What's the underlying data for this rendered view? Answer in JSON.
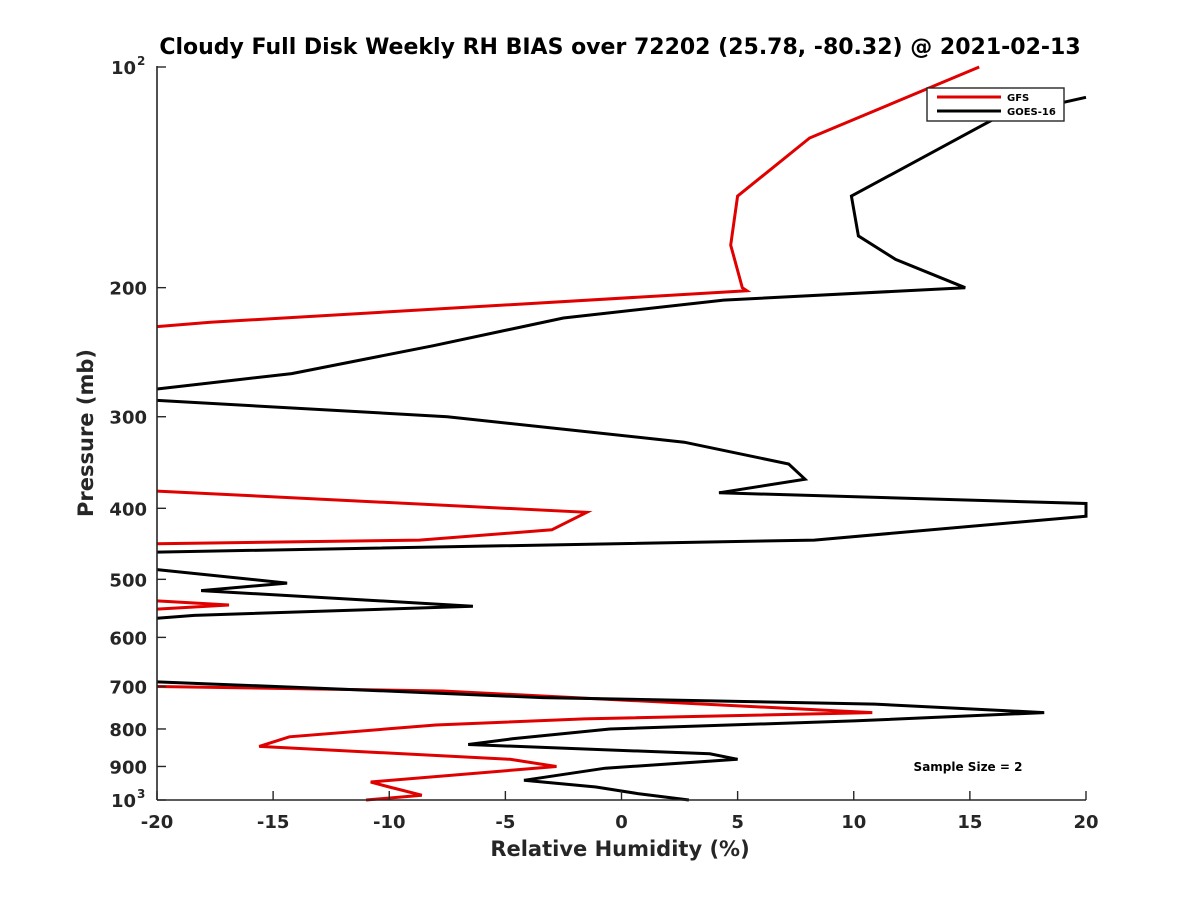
{
  "chart_data": {
    "type": "line",
    "title": "Cloudy Full Disk Weekly RH BIAS over 72202 (25.78, -80.32) @ 2021-02-13",
    "xlabel": "Relative Humidity (%)",
    "ylabel": "Pressure (mb)",
    "xlim": [
      -20,
      20
    ],
    "ylim": [
      100,
      1000
    ],
    "yscale": "log",
    "yreversed": true,
    "grid": false,
    "legend_position": "top-right",
    "x_ticks": [
      {
        "value": -20,
        "label": "-20"
      },
      {
        "value": -15,
        "label": "-15"
      },
      {
        "value": -10,
        "label": "-10"
      },
      {
        "value": -5,
        "label": "-5"
      },
      {
        "value": 0,
        "label": "0"
      },
      {
        "value": 5,
        "label": "5"
      },
      {
        "value": 10,
        "label": "10"
      },
      {
        "value": 15,
        "label": "15"
      },
      {
        "value": 20,
        "label": "20"
      }
    ],
    "y_ticks": [
      {
        "value": 100,
        "label": "10",
        "exponent": "2"
      },
      {
        "value": 200,
        "label": "200"
      },
      {
        "value": 300,
        "label": "300"
      },
      {
        "value": 400,
        "label": "400"
      },
      {
        "value": 500,
        "label": "500"
      },
      {
        "value": 600,
        "label": "600"
      },
      {
        "value": 700,
        "label": "700"
      },
      {
        "value": 800,
        "label": "800"
      },
      {
        "value": 900,
        "label": "900"
      },
      {
        "value": 1000,
        "label": "10",
        "exponent": "3"
      }
    ],
    "annotation": "Sample Size = 2",
    "series": [
      {
        "name": "GFS",
        "color": "#e00000",
        "points": [
          [
            15.4,
            100
          ],
          [
            8.1,
            125
          ],
          [
            5.0,
            150
          ],
          [
            4.7,
            175
          ],
          [
            5.2,
            200
          ],
          [
            5.4,
            202
          ],
          [
            -17.7,
            223
          ],
          [
            -20.0,
            226
          ],
          null,
          [
            -20.0,
            379
          ],
          [
            -1.5,
            405
          ],
          [
            -3.0,
            428
          ],
          [
            -8.7,
            442
          ],
          [
            -20.0,
            447
          ],
          null,
          [
            -20.0,
            535
          ],
          [
            -16.9,
            542
          ],
          [
            -20.0,
            549
          ],
          null,
          [
            -20.0,
            700
          ],
          [
            -7.7,
            710
          ],
          [
            10.8,
            760
          ],
          [
            -1.6,
            775
          ],
          [
            -8.0,
            790
          ],
          [
            -14.3,
            820
          ],
          [
            -15.6,
            845
          ],
          [
            -4.8,
            880
          ],
          [
            -2.8,
            900
          ],
          [
            -10.8,
            945
          ],
          [
            -10.0,
            960
          ],
          [
            -8.6,
            985
          ],
          [
            -11.0,
            1000
          ]
        ]
      },
      {
        "name": "GOES-16",
        "color": "#000000",
        "points": [
          [
            20.0,
            110
          ],
          [
            16.2,
            117
          ],
          [
            9.9,
            150
          ],
          [
            10.2,
            170
          ],
          [
            11.8,
            183
          ],
          [
            14.8,
            200
          ],
          [
            4.4,
            208
          ],
          [
            -2.5,
            220
          ],
          [
            -8.1,
            240
          ],
          [
            -14.2,
            262
          ],
          [
            -20.0,
            275
          ],
          null,
          [
            -20.0,
            285
          ],
          [
            -7.5,
            300
          ],
          [
            2.7,
            325
          ],
          [
            7.2,
            348
          ],
          [
            7.9,
            365
          ],
          [
            4.2,
            381
          ],
          [
            20.0,
            394
          ],
          [
            20.0,
            410
          ],
          [
            8.3,
            442
          ],
          [
            -20.0,
            459
          ],
          null,
          [
            -20.0,
            485
          ],
          [
            -14.4,
            506
          ],
          [
            -18.1,
            518
          ],
          [
            -6.4,
            544
          ],
          [
            -18.4,
            560
          ],
          [
            -20.0,
            565
          ],
          null,
          [
            -20.0,
            690
          ],
          [
            -12.5,
            705
          ],
          [
            -3.4,
            725
          ],
          [
            10.9,
            740
          ],
          [
            18.2,
            760
          ],
          [
            10.0,
            780
          ],
          [
            -0.5,
            800
          ],
          [
            -4.7,
            825
          ],
          [
            -6.6,
            840
          ],
          [
            3.8,
            865
          ],
          [
            5.0,
            880
          ],
          [
            -0.7,
            905
          ],
          [
            -4.2,
            940
          ],
          [
            -1.1,
            960
          ],
          [
            0.7,
            980
          ],
          [
            2.9,
            1000
          ]
        ]
      }
    ]
  }
}
